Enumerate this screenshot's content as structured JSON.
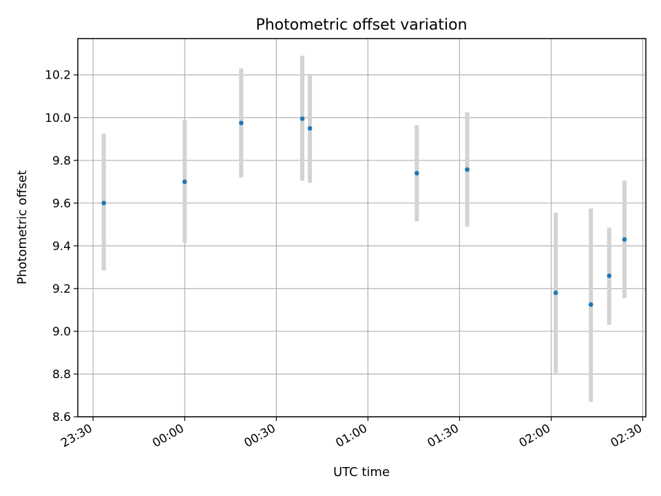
{
  "chart_data": {
    "type": "scatter",
    "title": "Photometric offset variation",
    "xlabel": "UTC time",
    "ylabel": "Photometric offset",
    "xlim": [
      "23:25",
      "02:31"
    ],
    "ylim": [
      8.6,
      10.37
    ],
    "grid": true,
    "x_ticks": [
      "23:30",
      "00:00",
      "00:30",
      "01:00",
      "01:30",
      "02:00",
      "02:30"
    ],
    "y_ticks": [
      "8.6",
      "8.8",
      "9.0",
      "9.2",
      "9.4",
      "9.6",
      "9.8",
      "10.0",
      "10.2"
    ],
    "series": [
      {
        "color": "#1f77b4",
        "error_color": "#d3d3d3",
        "x": [
          "23:33:30",
          "00:00:00",
          "00:18:30",
          "00:38:30",
          "00:41:00",
          "01:16:00",
          "01:32:30",
          "02:01:30",
          "02:13:00",
          "02:19:00",
          "02:24:00"
        ],
        "y": [
          9.6,
          9.7,
          9.975,
          9.995,
          9.95,
          9.74,
          9.757,
          9.18,
          9.125,
          9.26,
          9.43
        ],
        "yerr_low": [
          9.285,
          9.415,
          9.72,
          9.705,
          9.695,
          9.515,
          9.49,
          8.805,
          8.67,
          9.03,
          9.155
        ],
        "yerr_high": [
          9.925,
          9.99,
          10.23,
          10.29,
          10.205,
          9.965,
          10.025,
          9.555,
          9.575,
          9.485,
          9.705
        ]
      }
    ]
  }
}
